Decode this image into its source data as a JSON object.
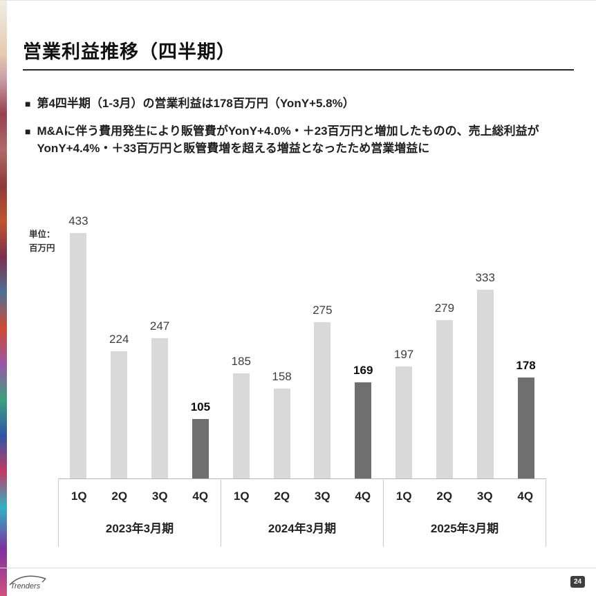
{
  "slide": {
    "title": "営業利益推移（四半期）",
    "bullet_marker": "■",
    "bullets": [
      "第4四半期（1-3月）の営業利益は178百万円（YonY+5.8%）",
      "M&Aに伴う費用発生により販管費がYonY+4.0%・＋23百万円と増加したものの、売上総利益がYonY+4.4%・＋33百万円と販管費増を超える増益となったため営業増益に"
    ],
    "unit_label": "単位：\n百万円",
    "footer": {
      "logo_text": "Trenders",
      "page_number": "24"
    }
  },
  "chart_data": {
    "type": "bar",
    "title": "営業利益推移（四半期）",
    "unit": "百万円",
    "quarter_labels": [
      "1Q",
      "2Q",
      "3Q",
      "4Q"
    ],
    "groups": [
      {
        "label": "2023年3月期",
        "values": [
          433,
          224,
          247,
          105
        ]
      },
      {
        "label": "2024年3月期",
        "values": [
          185,
          158,
          275,
          169
        ]
      },
      {
        "label": "2025年3月期",
        "values": [
          197,
          279,
          333,
          178
        ]
      }
    ],
    "ylim": [
      0,
      500
    ],
    "grid": false,
    "legend": "none",
    "bar_color": "#d9d9d9",
    "highlight_color": "#6f6f6f",
    "highlight_index": 3,
    "value_labels": true
  }
}
